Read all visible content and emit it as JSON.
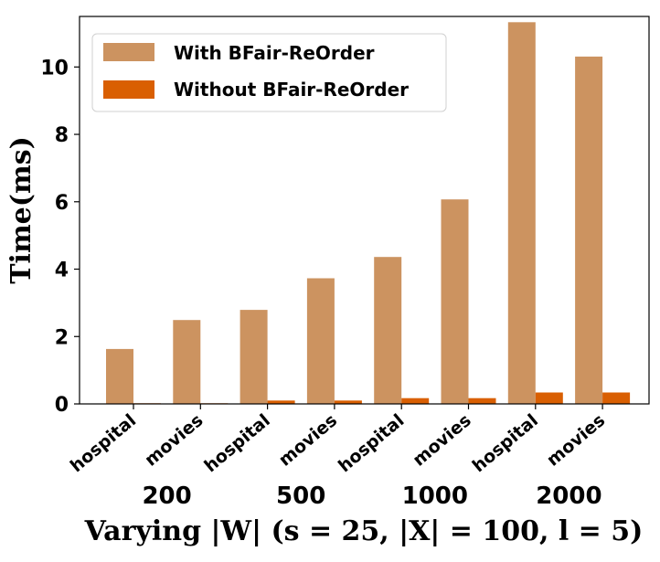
{
  "chart_data": {
    "type": "bar",
    "title": "",
    "ylabel": "Time(ms)",
    "xlabel": "Varying |W| (s = 25, |X| = 100, l = 5)",
    "ylim": [
      0,
      11.5
    ],
    "yticks": [
      "0",
      "2",
      "4",
      "6",
      "8",
      "10"
    ],
    "groups": [
      "200",
      "500",
      "1000",
      "2000"
    ],
    "categories": [
      "hospital",
      "movies",
      "hospital",
      "movies",
      "hospital",
      "movies",
      "hospital",
      "movies"
    ],
    "series": [
      {
        "name": "With BFair-ReOrder",
        "color": "#cc9360",
        "values": [
          1.63,
          2.49,
          2.79,
          3.73,
          4.36,
          6.07,
          11.33,
          10.31
        ]
      },
      {
        "name": "Without BFair-ReOrder",
        "color": "#d95f02",
        "values": [
          0.02,
          0.02,
          0.1,
          0.1,
          0.17,
          0.17,
          0.34,
          0.34
        ]
      }
    ],
    "legend_position": "top-left",
    "grid": false
  }
}
